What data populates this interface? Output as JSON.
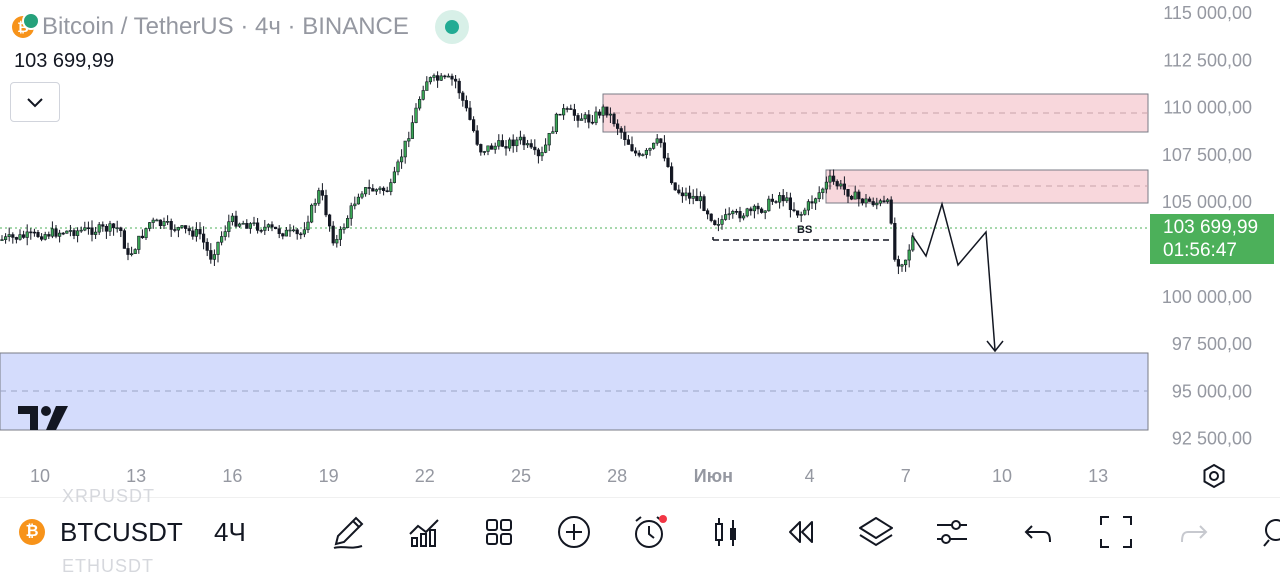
{
  "header": {
    "symbol_title": "Bitcoin / TetherUS",
    "timeframe": "4ч",
    "exchange": "BINANCE",
    "separator": "·",
    "last_price": "103 699,99",
    "status_color": "#22ab94"
  },
  "price_axis": {
    "labels": [
      "115 000,00",
      "112 500,00",
      "110 000,00",
      "107 500,00",
      "105 000,00",
      "102 500,00",
      "100 000,00",
      "97 500,00",
      "95 000,00",
      "92 500,00"
    ],
    "current_price": "103 699,99",
    "countdown": "01:56:47",
    "current_price_color": "#4cb05a"
  },
  "time_axis": {
    "labels": [
      "10",
      "13",
      "16",
      "19",
      "22",
      "25",
      "28",
      "Июн",
      "4",
      "7",
      "10",
      "13"
    ]
  },
  "chart_data": {
    "type": "candlestick",
    "symbol": "BTCUSDT",
    "ylim": [
      92500,
      115000
    ],
    "last": 103699.99,
    "zones": [
      {
        "kind": "supply",
        "from": 108600,
        "to": 110700,
        "color": "#f8d7dc"
      },
      {
        "kind": "supply",
        "from": 105050,
        "to": 106750,
        "color": "#f8d7dc"
      },
      {
        "kind": "demand",
        "from": 93000,
        "to": 97050,
        "color": "#d4dcfc"
      }
    ],
    "annotation": "BS",
    "projection": [
      [
        104900,
        1
      ],
      [
        103050,
        2
      ],
      [
        104970,
        3
      ],
      [
        103600,
        4
      ],
      [
        104580,
        5
      ],
      [
        97200,
        6
      ]
    ]
  },
  "toolbar": {
    "symbol": "BTCUSDT",
    "interval": "4Ч",
    "ghost_above": "XRPUSDT",
    "ghost_below": "ETHUSDT",
    "coin_glyph": "₿",
    "tools": [
      "draw-pencil-icon",
      "indicators-icon",
      "templates-grid-icon",
      "add-circle-icon",
      "alert-clock-icon",
      "candles-icon",
      "replay-icon",
      "layers-icon",
      "settings-sliders-icon",
      "undo-icon",
      "fullscreen-icon",
      "redo-icon"
    ],
    "alert_dot_color": "#f23645"
  },
  "logo": "TV"
}
